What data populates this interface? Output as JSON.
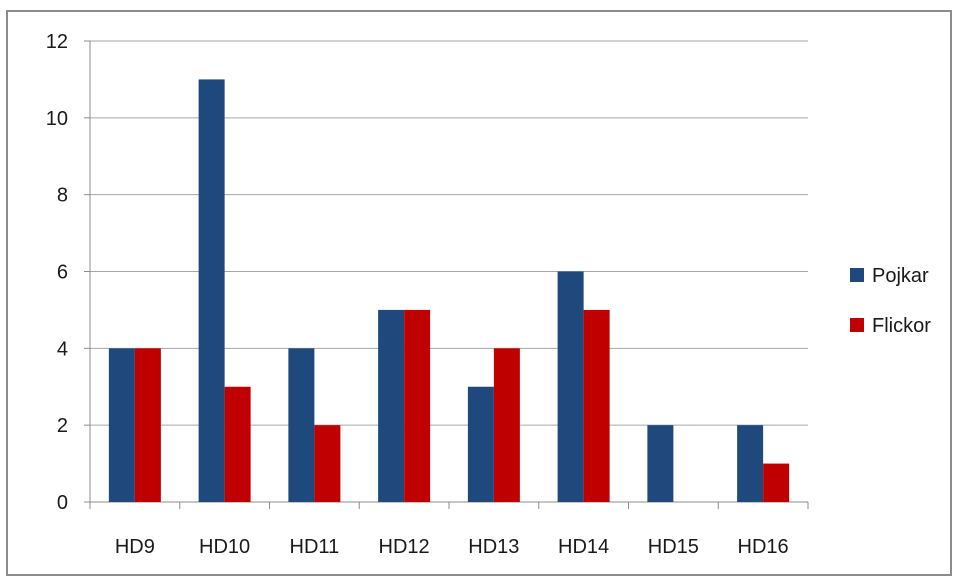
{
  "chart_data": {
    "type": "bar",
    "categories": [
      "HD9",
      "HD10",
      "HD11",
      "HD12",
      "HD13",
      "HD14",
      "HD15",
      "HD16"
    ],
    "series": [
      {
        "name": "Pojkar",
        "values": [
          4,
          11,
          4,
          5,
          3,
          6,
          2,
          2
        ],
        "color": "#1f497d"
      },
      {
        "name": "Flickor",
        "values": [
          4,
          3,
          2,
          5,
          4,
          5,
          0,
          1
        ],
        "color": "#c00000"
      }
    ],
    "title": "",
    "xlabel": "",
    "ylabel": "",
    "ylim": [
      0,
      12
    ],
    "yticks": [
      0,
      2,
      4,
      6,
      8,
      10,
      12
    ],
    "grid": true,
    "legend_position": "right",
    "colors": {
      "gridline": "#a6a6a6",
      "axis": "#8c8c8c",
      "frame": "#8c8c8c"
    }
  }
}
